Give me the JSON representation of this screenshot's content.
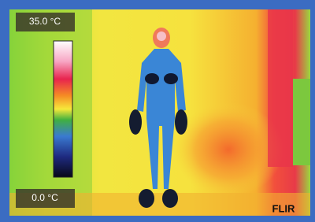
{
  "scale": {
    "max_label": "35.0 °C",
    "min_label": "0.0 °C"
  },
  "logo": "FLIR"
}
